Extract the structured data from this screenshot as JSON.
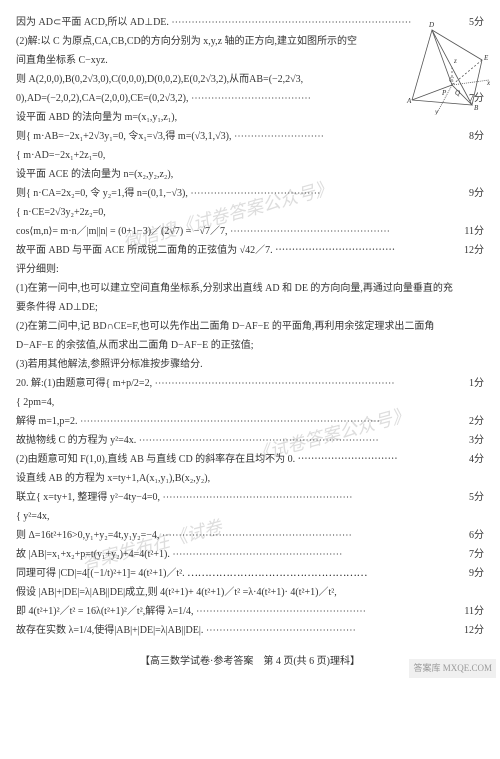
{
  "lines": [
    {
      "text": "因为 AD⊂平面 ACD,所以 AD⊥DE. ⋯⋯⋯⋯⋯⋯⋯⋯⋯⋯⋯⋯⋯⋯⋯⋯⋯⋯⋯⋯⋯⋯⋯⋯",
      "score": "5分"
    },
    {
      "text": "(2)解:以 C 为原点,CA,CB,CD的方向分别为 x,y,z 轴的正方向,建立如图所示的空",
      "score": ""
    },
    {
      "text": "间直角坐标系 C−xyz.",
      "score": ""
    },
    {
      "text": "则 A(2,0,0),B(0,2√3,0),C(0,0,0),D(0,0,2),E(0,2√3,2),从而AB=(−2,2√3,",
      "score": ""
    },
    {
      "text": "0),AD=(−2,0,2),CA=(2,0,0),CE=(0,2√3,2), ⋯⋯⋯⋯⋯⋯⋯⋯⋯⋯⋯⋯",
      "score": "7分"
    },
    {
      "text": "设平面 ABD 的法向量为 m=(x₁,y₁,z₁),",
      "score": ""
    },
    {
      "text": "则{ m·AB=−2x₁+2√3y₁=0,  令x₁=√3,得 m=(√3,1,√3), ⋯⋯⋯⋯⋯⋯⋯⋯⋯",
      "score": "8分"
    },
    {
      "text": "   { m·AD=−2x₁+2z₁=0,",
      "score": ""
    },
    {
      "text": "设平面 ACE 的法向量为 n=(x₂,y₂,z₂),",
      "score": ""
    },
    {
      "text": "则{ n·CA=2x₂=0,  令 y₂=1,得 n=(0,1,−√3), ⋯⋯⋯⋯⋯⋯⋯⋯⋯⋯⋯⋯⋯",
      "score": "9分"
    },
    {
      "text": "   { n·CE=2√3y₂+2z₂=0,",
      "score": ""
    },
    {
      "text": "cos⟨m,n⟩= m·n／|m||n| = (0+1−3)／(2√7) = −√7／7, ⋯⋯⋯⋯⋯⋯⋯⋯⋯⋯⋯⋯⋯⋯⋯⋯",
      "score": "11分"
    },
    {
      "text": "故平面 ABD 与平面 ACE 所成锐二面角的正弦值为 √42／7. ⋯⋯⋯⋯⋯⋯⋯⋯⋯⋯⋯⋯",
      "score": "12分"
    },
    {
      "text": "评分细则:",
      "score": ""
    },
    {
      "text": "(1)在第一问中,也可以建立空间直角坐标系,分别求出直线 AD 和 DE 的方向向量,再通过向量垂直的充",
      "score": ""
    },
    {
      "text": "要条件得 AD⊥DE;",
      "score": ""
    },
    {
      "text": "(2)在第二问中,记 BD∩CE=F,也可以先作出二面角 D−AF−E 的平面角,再利用余弦定理求出二面角",
      "score": ""
    },
    {
      "text": "D−AF−E 的余弦值,从而求出二面角 D−AF−E 的正弦值;",
      "score": ""
    },
    {
      "text": "(3)若用其他解法,参照评分标准按步骤给分.",
      "score": ""
    },
    {
      "text": "20. 解:(1)由题意可得{ m+p/2=2,  ⋯⋯⋯⋯⋯⋯⋯⋯⋯⋯⋯⋯⋯⋯⋯⋯⋯⋯⋯⋯⋯⋯⋯⋯",
      "score": "1分"
    },
    {
      "text": "                    { 2pm=4,",
      "score": ""
    },
    {
      "text": "解得 m=1,p=2. ⋯⋯⋯⋯⋯⋯⋯⋯⋯⋯⋯⋯⋯⋯⋯⋯⋯⋯⋯⋯⋯⋯⋯⋯⋯⋯⋯⋯⋯⋯",
      "score": "2分"
    },
    {
      "text": "故抛物线 C 的方程为 y²=4x. ⋯⋯⋯⋯⋯⋯⋯⋯⋯⋯⋯⋯⋯⋯⋯⋯⋯⋯⋯⋯⋯⋯⋯⋯",
      "score": "3分"
    },
    {
      "text": "(2)由题意可知 F(1,0),直线 AB 与直线 CD 的斜率存在且均不为 0. ⋯⋯⋯⋯⋯⋯⋯⋯⋯⋯",
      "score": "4分"
    },
    {
      "text": "设直线 AB 的方程为 x=ty+1,A(x₁,y₁),B(x₂,y₂),",
      "score": ""
    },
    {
      "text": "联立{ x=ty+1, 整理得 y²−4ty−4=0, ⋯⋯⋯⋯⋯⋯⋯⋯⋯⋯⋯⋯⋯⋯⋯⋯⋯⋯⋯",
      "score": "5分"
    },
    {
      "text": "    { y²=4x,",
      "score": ""
    },
    {
      "text": "则 Δ=16t²+16>0,y₁+y₂=4t,y₁y₂=−4, ⋯⋯⋯⋯⋯⋯⋯⋯⋯⋯⋯⋯⋯⋯⋯⋯⋯⋯⋯",
      "score": "6分"
    },
    {
      "text": "故 |AB|=x₁+x₂+p=t(y₁+y₂)+4=4(t²+1). ⋯⋯⋯⋯⋯⋯⋯⋯⋯⋯⋯⋯⋯⋯⋯⋯⋯",
      "score": "7分"
    },
    {
      "text": "同理可得 |CD|=4[(−1/t)²+1]= 4(t²+1)／t². ⋯⋯⋯⋯⋯⋯⋯⋯⋯⋯⋯⋯⋯⋯⋯⋯⋯",
      "score": "9分"
    },
    {
      "text": "假设 |AB|+|DE|=λ|AB||DE|成立,则 4(t²+1)+ 4(t²+1)／t² =λ·4(t²+1)· 4(t²+1)／t²,",
      "score": ""
    },
    {
      "text": "即 4(t²+1)²／t² = 16λ(t²+1)²／t²,解得 λ=1/4, ⋯⋯⋯⋯⋯⋯⋯⋯⋯⋯⋯⋯⋯⋯⋯⋯⋯",
      "score": "11分"
    },
    {
      "text": "故存在实数 λ=1/4,使得|AB|+|DE|=λ|AB||DE|. ⋯⋯⋯⋯⋯⋯⋯⋯⋯⋯⋯⋯⋯⋯⋯",
      "score": "12分"
    }
  ],
  "footer": "【高三数学试卷·参考答案　第 4 页(共 6 页)理科】",
  "diagram": {
    "labels": [
      "D",
      "E",
      "A",
      "B",
      "C",
      "Q",
      "P",
      "x",
      "y",
      "z"
    ],
    "stroke": "#555"
  },
  "watermarks": [
    "微信搜《试卷答案公众号》",
    "《试卷答案公众号》",
    "答案发布在《试卷"
  ],
  "corner": "答案库 MXQE.COM"
}
